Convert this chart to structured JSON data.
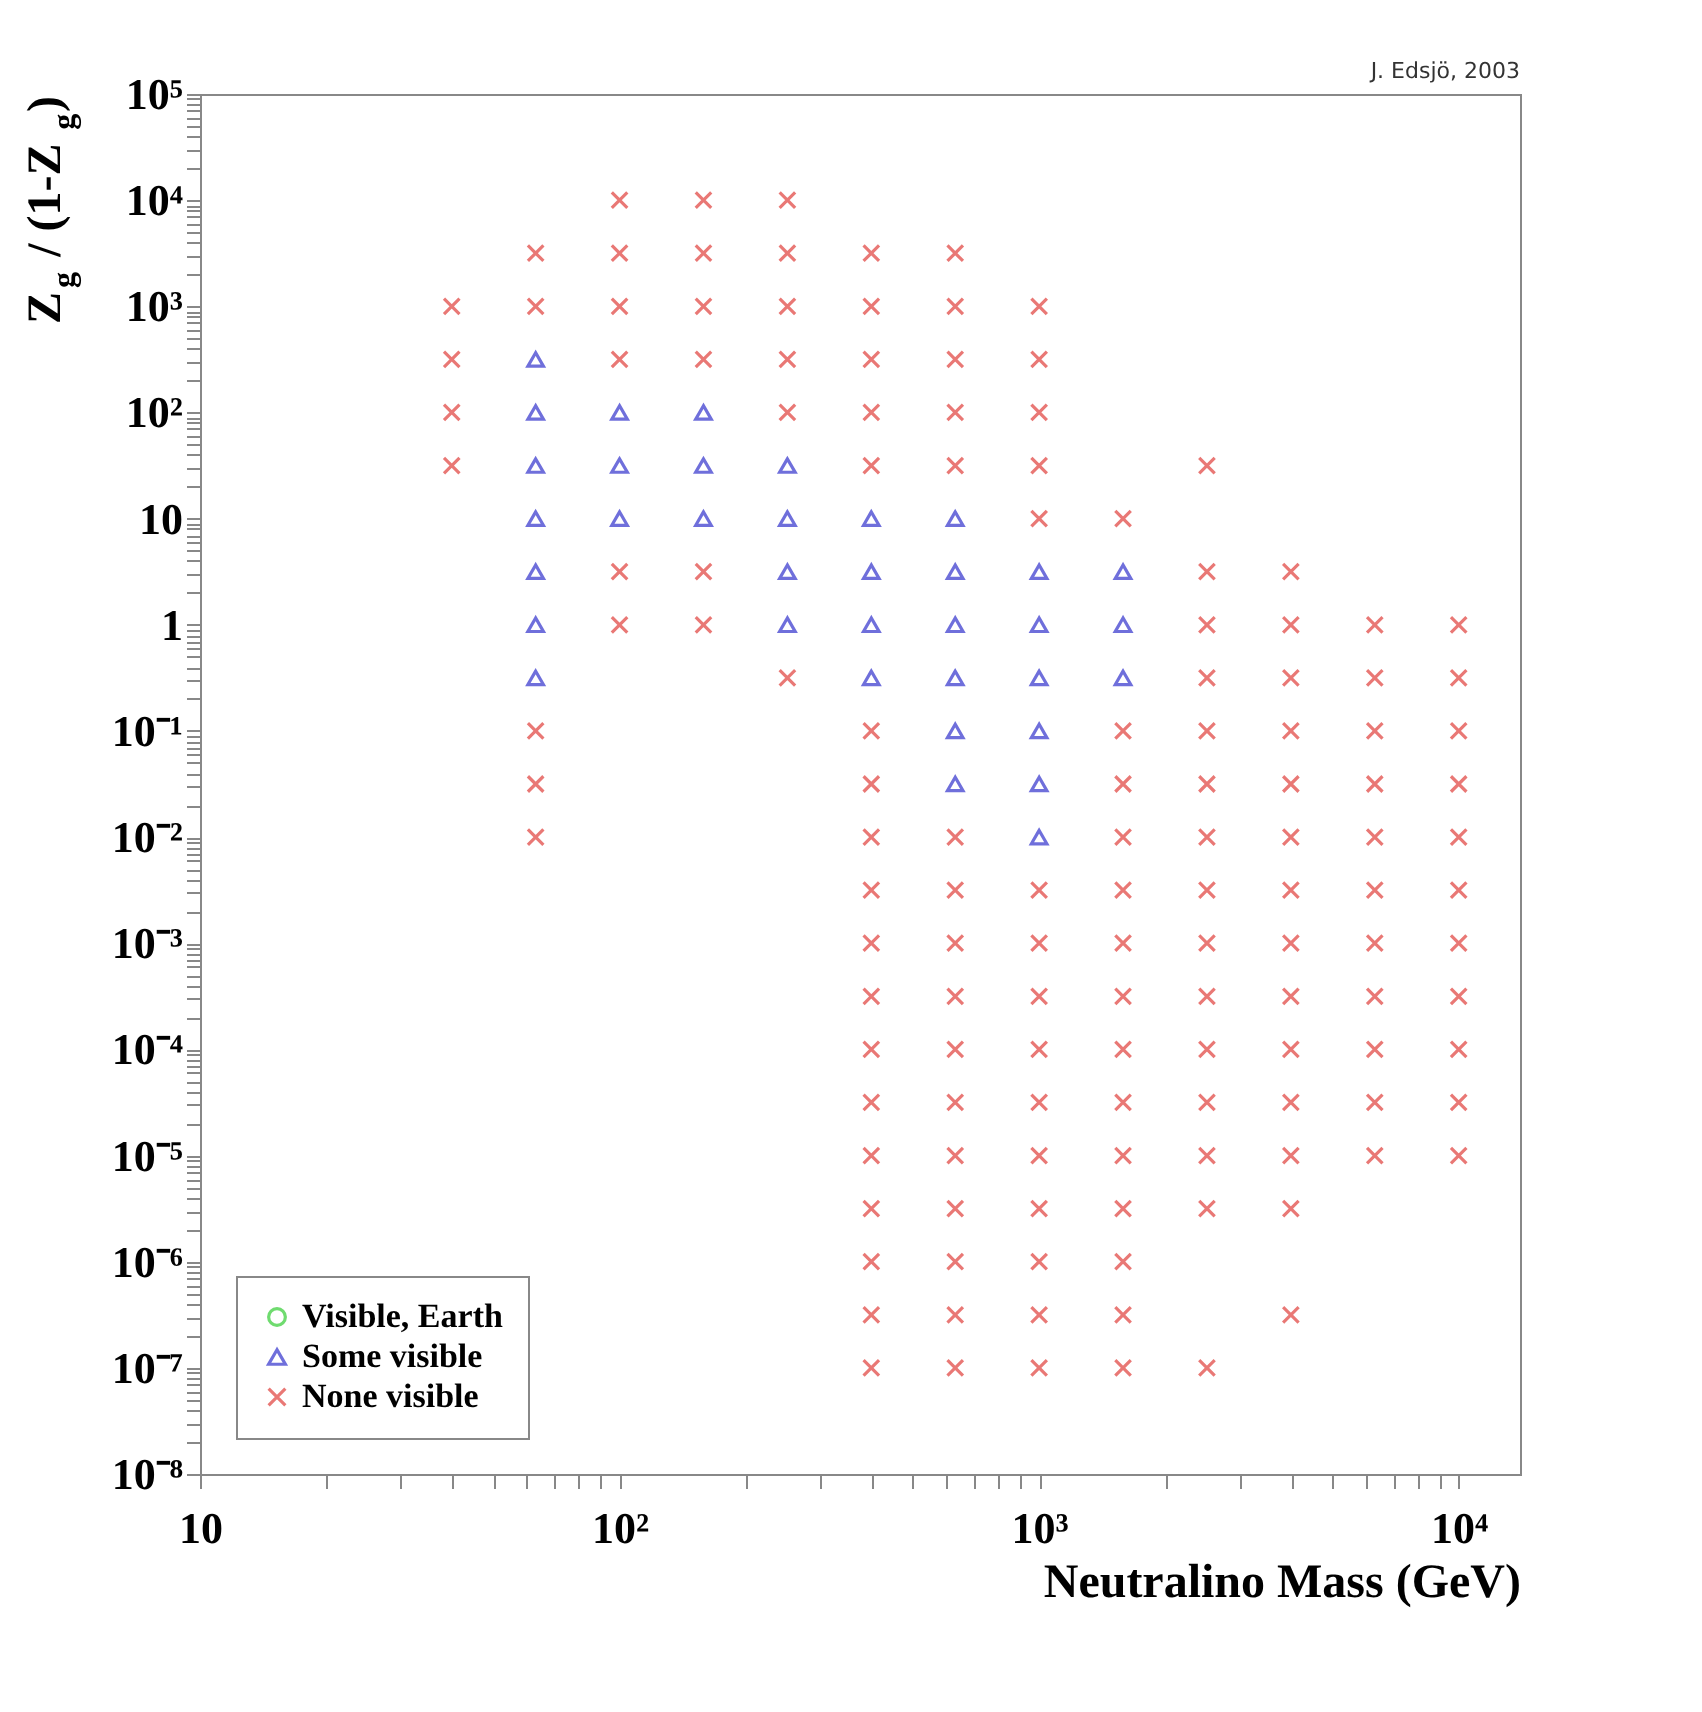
{
  "chart_data": {
    "type": "scatter",
    "xlabel": "Neutralino Mass (GeV)",
    "ylabel": "Z$_{g}$ / (1-Z$_{g}$)",
    "annotations": [
      "J. Edsjö, 2003"
    ],
    "log": "xy",
    "legend": "bottom left",
    "xlim": [
      10,
      14000
    ],
    "ylim": [
      1e-08,
      100000
    ],
    "xticks": [
      10,
      {
        "value": 20,
        "label": null
      },
      {
        "value": 30,
        "label": null
      },
      {
        "value": 40,
        "label": null
      },
      {
        "value": 50,
        "label": null
      },
      {
        "value": 60,
        "label": null
      },
      {
        "value": 70,
        "label": null
      },
      {
        "value": 80,
        "label": null
      },
      {
        "value": 90,
        "label": null
      },
      {
        "value": 100,
        "label": "10²"
      },
      {
        "value": 200,
        "label": null
      },
      {
        "value": 300,
        "label": null
      },
      {
        "value": 400,
        "label": null
      },
      {
        "value": 500,
        "label": null
      },
      {
        "value": 600,
        "label": null
      },
      {
        "value": 700,
        "label": null
      },
      {
        "value": 800,
        "label": null
      },
      {
        "value": 900,
        "label": null
      },
      {
        "value": 1000,
        "label": "10³"
      },
      {
        "value": 2000,
        "label": null
      },
      {
        "value": 3000,
        "label": null
      },
      {
        "value": 4000,
        "label": null
      },
      {
        "value": 5000,
        "label": null
      },
      {
        "value": 6000,
        "label": null
      },
      {
        "value": 7000,
        "label": null
      },
      {
        "value": 8000,
        "label": null
      },
      {
        "value": 9000,
        "label": null
      },
      {
        "value": 10000,
        "label": "10⁴"
      }
    ],
    "yticks": [
      {
        "value": 1e-08,
        "label": "10⁻⁸"
      },
      {
        "value": 2e-08,
        "label": null
      },
      {
        "value": 3e-08,
        "label": null
      },
      {
        "value": 4e-08,
        "label": null
      },
      {
        "value": 5e-08,
        "label": null
      },
      {
        "value": 6e-08,
        "label": null
      },
      {
        "value": 7e-08,
        "label": null
      },
      {
        "value": 8e-08,
        "label": null
      },
      {
        "value": 9e-08,
        "label": null
      },
      {
        "value": 1e-07,
        "label": "10⁻⁷"
      },
      {
        "value": 2e-07,
        "label": null
      },
      {
        "value": 3e-07,
        "label": null
      },
      {
        "value": 4e-07,
        "label": null
      },
      {
        "value": 5e-07,
        "label": null
      },
      {
        "value": 6e-07,
        "label": null
      },
      {
        "value": 7e-07,
        "label": null
      },
      {
        "value": 8e-07,
        "label": null
      },
      {
        "value": 9e-07,
        "label": null
      },
      {
        "value": 1e-06,
        "label": "10⁻⁶"
      },
      {
        "value": 2e-06,
        "label": null
      },
      {
        "value": 3e-06,
        "label": null
      },
      {
        "value": 4e-06,
        "label": null
      },
      {
        "value": 5e-06,
        "label": null
      },
      {
        "value": 6e-06,
        "label": null
      },
      {
        "value": 7e-06,
        "label": null
      },
      {
        "value": 8e-06,
        "label": null
      },
      {
        "value": 9e-06,
        "label": null
      },
      {
        "value": 1e-05,
        "label": "10⁻⁵"
      },
      {
        "value": 2e-05,
        "label": null
      },
      {
        "value": 3e-05,
        "label": null
      },
      {
        "value": 4e-05,
        "label": null
      },
      {
        "value": 5e-05,
        "label": null
      },
      {
        "value": 6e-05,
        "label": null
      },
      {
        "value": 7e-05,
        "label": null
      },
      {
        "value": 8e-05,
        "label": null
      },
      {
        "value": 9e-05,
        "label": null
      },
      {
        "value": 0.0001,
        "label": "10⁻⁴"
      },
      {
        "value": 0.0002,
        "label": null
      },
      {
        "value": 0.0003,
        "label": null
      },
      {
        "value": 0.0004,
        "label": null
      },
      {
        "value": 0.0005,
        "label": null
      },
      {
        "value": 0.0006,
        "label": null
      },
      {
        "value": 0.0007,
        "label": null
      },
      {
        "value": 0.0008,
        "label": null
      },
      {
        "value": 0.0009,
        "label": null
      },
      {
        "value": 0.001,
        "label": "10⁻³"
      },
      {
        "value": 0.002,
        "label": null
      },
      {
        "value": 0.003,
        "label": null
      },
      {
        "value": 0.004,
        "label": null
      },
      {
        "value": 0.005,
        "label": null
      },
      {
        "value": 0.006,
        "label": null
      },
      {
        "value": 0.007,
        "label": null
      },
      {
        "value": 0.008,
        "label": null
      },
      {
        "value": 0.009,
        "label": null
      },
      {
        "value": 0.01,
        "label": "10⁻²"
      },
      {
        "value": 0.02,
        "label": null
      },
      {
        "value": 0.03,
        "label": null
      },
      {
        "value": 0.04,
        "label": null
      },
      {
        "value": 0.05,
        "label": null
      },
      {
        "value": 0.06,
        "label": null
      },
      {
        "value": 0.07,
        "label": null
      },
      {
        "value": 0.08,
        "label": null
      },
      {
        "value": 0.09,
        "label": null
      },
      {
        "value": 0.1,
        "label": "10⁻¹"
      },
      {
        "value": 0.2,
        "label": null
      },
      {
        "value": 0.3,
        "label": null
      },
      {
        "value": 0.4,
        "label": null
      },
      {
        "value": 0.5,
        "label": null
      },
      {
        "value": 0.6,
        "label": null
      },
      {
        "value": 0.7,
        "label": null
      },
      {
        "value": 0.8,
        "label": null
      },
      {
        "value": 0.9,
        "label": null
      },
      1,
      {
        "value": 2,
        "label": null
      },
      {
        "value": 3,
        "label": null
      },
      {
        "value": 4,
        "label": null
      },
      {
        "value": 5,
        "label": null
      },
      {
        "value": 6,
        "label": null
      },
      {
        "value": 7,
        "label": null
      },
      {
        "value": 8,
        "label": null
      },
      {
        "value": 9,
        "label": null
      },
      10,
      {
        "value": 20,
        "label": null
      },
      {
        "value": 30,
        "label": null
      },
      {
        "value": 40,
        "label": null
      },
      {
        "value": 50,
        "label": null
      },
      {
        "value": 60,
        "label": null
      },
      {
        "value": 70,
        "label": null
      },
      {
        "value": 80,
        "label": null
      },
      {
        "value": 90,
        "label": null
      },
      {
        "value": 100,
        "label": "10²"
      },
      {
        "value": 200,
        "label": null
      },
      {
        "value": 300,
        "label": null
      },
      {
        "value": 400,
        "label": null
      },
      {
        "value": 500,
        "label": null
      },
      {
        "value": 600,
        "label": null
      },
      {
        "value": 700,
        "label": null
      },
      {
        "value": 800,
        "label": null
      },
      {
        "value": 900,
        "label": null
      },
      {
        "value": 1000,
        "label": "10³"
      },
      {
        "value": 2000,
        "label": null
      },
      {
        "value": 3000,
        "label": null
      },
      {
        "value": 4000,
        "label": null
      },
      {
        "value": 5000,
        "label": null
      },
      {
        "value": 6000,
        "label": null
      },
      {
        "value": 7000,
        "label": null
      },
      {
        "value": 8000,
        "label": null
      },
      {
        "value": 9000,
        "label": null
      },
      {
        "value": 10000,
        "label": "10⁴"
      },
      {
        "value": 20000,
        "label": null
      },
      {
        "value": 30000,
        "label": null
      },
      {
        "value": 40000,
        "label": null
      },
      {
        "value": 50000,
        "label": null
      },
      {
        "value": 60000,
        "label": null
      },
      {
        "value": 70000,
        "label": null
      },
      {
        "value": 80000,
        "label": null
      },
      {
        "value": 90000,
        "label": null
      },
      {
        "value": 100000,
        "label": "10⁵"
      }
    ],
    "series": [
      {
        "name": "Visible, Earth",
        "color": "#33cc33",
        "marker": "circle"
      },
      {
        "name": "Some visible",
        "color": "#3333cc",
        "marker": "triangle",
        "x": [
          63.096,
          63.096,
          63.096,
          63.096,
          63.096,
          63.096,
          63.096,
          100,
          100,
          100,
          158.49,
          158.49,
          158.49,
          251.19,
          251.19,
          251.19,
          251.19,
          398.11,
          398.11,
          398.11,
          398.11,
          630.96,
          630.96,
          630.96,
          630.96,
          630.96,
          630.96,
          1000,
          1000,
          1000,
          1000,
          1000,
          1000,
          1584.9,
          1584.9,
          1584.9
        ],
        "values": [
          316.23,
          100,
          31.623,
          10,
          3.1623,
          1,
          0.31623,
          100,
          31.623,
          10,
          100,
          31.623,
          10,
          31.623,
          10,
          3.1623,
          1,
          10,
          3.1623,
          1,
          0.31623,
          10,
          3.1623,
          1,
          0.31623,
          0.1,
          0.031623,
          3.1623,
          1,
          0.31623,
          0.1,
          0.031623,
          0.01,
          3.1623,
          1,
          0.31623
        ]
      },
      {
        "name": "None visible",
        "color": "#e0403c",
        "marker": "cross",
        "x": [
          39.811,
          39.811,
          39.811,
          39.811,
          63.096,
          63.096,
          63.096,
          63.096,
          63.096,
          100,
          100,
          100,
          100,
          100,
          100,
          158.49,
          158.49,
          158.49,
          158.49,
          158.49,
          158.49,
          251.19,
          251.19,
          251.19,
          251.19,
          251.19,
          251.19,
          398.11,
          398.11,
          398.11,
          398.11,
          398.11,
          398.11,
          398.11,
          398.11,
          398.11,
          398.11,
          398.11,
          398.11,
          398.11,
          398.11,
          398.11,
          398.11,
          398.11,
          398.11,
          630.96,
          630.96,
          630.96,
          630.96,
          630.96,
          630.96,
          630.96,
          630.96,
          630.96,
          630.96,
          630.96,
          630.96,
          630.96,
          630.96,
          630.96,
          630.96,
          1000,
          1000,
          1000,
          1000,
          1000,
          1000,
          1000,
          1000,
          1000,
          1000,
          1000,
          1000,
          1000,
          1000,
          1000,
          1584.9,
          1584.9,
          1584.9,
          1584.9,
          1584.9,
          1584.9,
          1584.9,
          1584.9,
          1584.9,
          1584.9,
          1584.9,
          1584.9,
          1584.9,
          1584.9,
          2511.9,
          2511.9,
          2511.9,
          2511.9,
          2511.9,
          2511.9,
          2511.9,
          2511.9,
          2511.9,
          2511.9,
          2511.9,
          2511.9,
          2511.9,
          2511.9,
          2511.9,
          3981.1,
          3981.1,
          3981.1,
          3981.1,
          3981.1,
          3981.1,
          3981.1,
          3981.1,
          3981.1,
          3981.1,
          3981.1,
          3981.1,
          3981.1,
          3981.1,
          6309.6,
          6309.6,
          6309.6,
          6309.6,
          6309.6,
          6309.6,
          6309.6,
          6309.6,
          6309.6,
          6309.6,
          6309.6,
          10000,
          10000,
          10000,
          10000,
          10000,
          10000,
          10000,
          10000,
          10000,
          10000,
          10000
        ],
        "values": [
          1000,
          316.23,
          100,
          31.623,
          3162.3,
          1000,
          0.1,
          0.031623,
          0.01,
          10000,
          3162.3,
          1000,
          316.23,
          3.1623,
          1,
          10000,
          3162.3,
          1000,
          316.23,
          3.1623,
          1,
          10000,
          3162.3,
          1000,
          316.23,
          100,
          0.31623,
          3162.3,
          1000,
          316.23,
          100,
          31.623,
          0.1,
          0.031623,
          0.01,
          0.0031623,
          0.001,
          0.00031623,
          0.0001,
          3.1623e-05,
          1e-05,
          3.1623e-06,
          1e-06,
          3.1623e-07,
          1e-07,
          3162.3,
          1000,
          316.23,
          100,
          31.623,
          0.01,
          0.0031623,
          0.001,
          0.00031623,
          0.0001,
          3.1623e-05,
          1e-05,
          3.1623e-06,
          1e-06,
          3.1623e-07,
          1e-07,
          1000,
          316.23,
          100,
          31.623,
          10,
          0.0031623,
          0.001,
          0.00031623,
          0.0001,
          3.1623e-05,
          1e-05,
          3.1623e-06,
          1e-06,
          3.1623e-07,
          1e-07,
          10,
          0.1,
          0.031623,
          0.01,
          0.0031623,
          0.001,
          0.00031623,
          0.0001,
          3.1623e-05,
          1e-05,
          3.1623e-06,
          1e-06,
          3.1623e-07,
          1e-07,
          31.623,
          3.1623,
          1,
          0.31623,
          0.1,
          0.031623,
          0.01,
          0.0031623,
          0.001,
          0.00031623,
          0.0001,
          3.1623e-05,
          1e-05,
          3.1623e-06,
          1e-07,
          3.1623,
          1,
          0.31623,
          0.1,
          0.031623,
          0.01,
          0.0031623,
          0.001,
          0.00031623,
          0.0001,
          3.1623e-05,
          1e-05,
          3.1623e-06,
          3.1623e-07,
          1,
          0.31623,
          0.1,
          0.031623,
          0.01,
          0.0031623,
          0.001,
          0.00031623,
          0.0001,
          3.1623e-05,
          1e-05,
          1,
          0.31623,
          0.1,
          0.031623,
          0.01,
          0.0031623,
          0.001,
          0.00031623,
          0.0001,
          3.1623e-05,
          1e-05
        ]
      }
    ]
  }
}
